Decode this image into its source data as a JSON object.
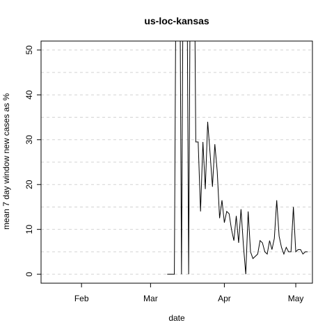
{
  "chart_data": {
    "type": "line",
    "title": "us-loc-kansas",
    "xlabel": "date",
    "ylabel": "mean  7  day window new cases as %",
    "x_ticks": [
      "Feb",
      "Mar",
      "Apr",
      "May"
    ],
    "x_tick_dates": [
      "2020-02-01",
      "2020-03-01",
      "2020-04-01",
      "2020-05-01"
    ],
    "y_ticks": [
      0,
      10,
      20,
      30,
      40,
      50
    ],
    "xlim": [
      "2020-01-15",
      "2020-05-08"
    ],
    "ylim": [
      -2,
      52
    ],
    "grid": "horizontal dashed",
    "colors": {
      "line": "#000000",
      "grid": "#d3d3d3",
      "frame": "#000000"
    },
    "series": [
      {
        "x": [
          "2020-03-08",
          "2020-03-09",
          "2020-03-10",
          "2020-03-11",
          "2020-03-12",
          "2020-03-13",
          "2020-03-14",
          "2020-03-15",
          "2020-03-16",
          "2020-03-17",
          "2020-03-18",
          "2020-03-19",
          "2020-03-20",
          "2020-03-21",
          "2020-03-22",
          "2020-03-23",
          "2020-03-24",
          "2020-03-25",
          "2020-03-26",
          "2020-03-27",
          "2020-03-28",
          "2020-03-29",
          "2020-03-30",
          "2020-03-31",
          "2020-04-01",
          "2020-04-02",
          "2020-04-03",
          "2020-04-04",
          "2020-04-05",
          "2020-04-06",
          "2020-04-07",
          "2020-04-08",
          "2020-04-09",
          "2020-04-10",
          "2020-04-11",
          "2020-04-12",
          "2020-04-13",
          "2020-04-14",
          "2020-04-15",
          "2020-04-16",
          "2020-04-17",
          "2020-04-18",
          "2020-04-19",
          "2020-04-20",
          "2020-04-21",
          "2020-04-22",
          "2020-04-23",
          "2020-04-24",
          "2020-04-25",
          "2020-04-26",
          "2020-04-27",
          "2020-04-28",
          "2020-04-29",
          "2020-04-30",
          "2020-05-01",
          "2020-05-02",
          "2020-05-03",
          "2020-05-04",
          "2020-05-05",
          "2020-05-06"
        ],
        "values": [
          0,
          0,
          0,
          0,
          100,
          100,
          0,
          100,
          100,
          0,
          100,
          100,
          29.5,
          29.5,
          14,
          29.5,
          19,
          34,
          27,
          19.5,
          29,
          23,
          12.5,
          16.5,
          11.5,
          14,
          13.5,
          10,
          7.5,
          13,
          7,
          14.5,
          6.5,
          0,
          14,
          5,
          3.5,
          4,
          4.5,
          7.5,
          7,
          5,
          4.5,
          7.5,
          5.5,
          8,
          16.5,
          8.5,
          6,
          4.5,
          6,
          5,
          5,
          15,
          5,
          5.5,
          5.5,
          4.5,
          5,
          5
        ]
      }
    ]
  }
}
